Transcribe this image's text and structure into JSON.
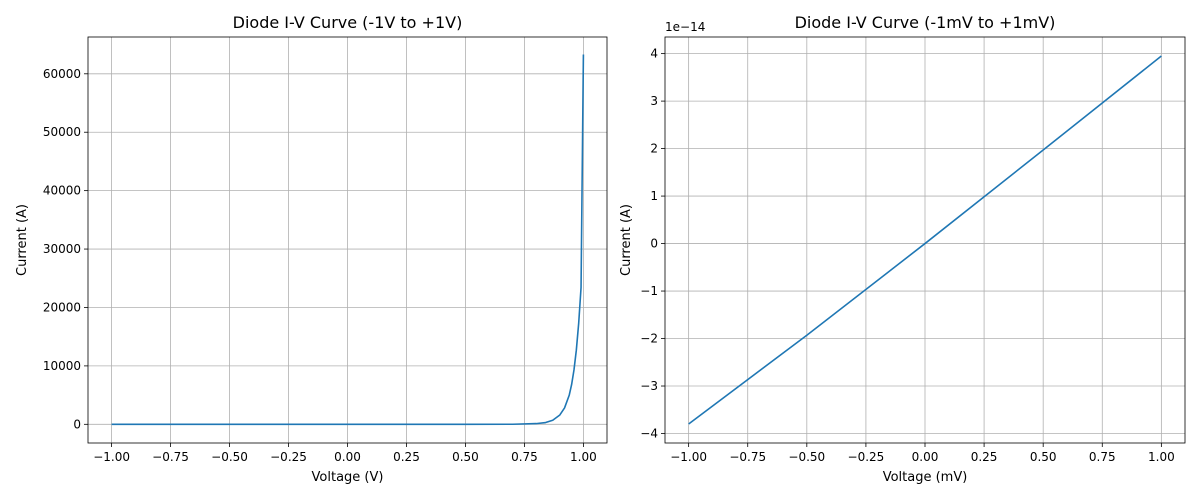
{
  "chart_data": [
    {
      "type": "line",
      "title": "Diode I-V Curve (-1V to +1V)",
      "xlabel": "Voltage (V)",
      "ylabel": "Current (A)",
      "xlim": [
        -1.1,
        1.1
      ],
      "ylim": [
        -3200,
        66300
      ],
      "grid": true,
      "x_ticks": [
        -1.0,
        -0.75,
        -0.5,
        -0.25,
        0.0,
        0.25,
        0.5,
        0.75,
        1.0
      ],
      "x_tick_labels": [
        "−1.00",
        "−0.75",
        "−0.50",
        "−0.25",
        "0.00",
        "0.25",
        "0.50",
        "0.75",
        "1.00"
      ],
      "y_ticks": [
        0,
        10000,
        20000,
        30000,
        40000,
        50000,
        60000
      ],
      "y_tick_labels": [
        "0",
        "10000",
        "20000",
        "30000",
        "40000",
        "50000",
        "60000"
      ],
      "offset_label": "",
      "color": "#1f77b4",
      "series": [
        {
          "x": [
            -1.0,
            -0.75,
            -0.5,
            -0.25,
            0.0,
            0.25,
            0.5,
            0.7,
            0.8,
            0.84,
            0.87,
            0.9,
            0.92,
            0.94,
            0.95,
            0.96,
            0.97,
            0.98,
            0.99,
            1.0
          ],
          "y": [
            0,
            0,
            0,
            0,
            0,
            0,
            0,
            10,
            120,
            300,
            700,
            1600,
            2800,
            5000,
            6800,
            9300,
            12700,
            17300,
            23400,
            63300
          ]
        }
      ]
    },
    {
      "type": "line",
      "title": "Diode I-V Curve (-1mV to +1mV)",
      "xlabel": "Voltage (mV)",
      "ylabel": "Current (A)",
      "xlim": [
        -1.1,
        1.1
      ],
      "ylim": [
        -4.2,
        4.35
      ],
      "grid": true,
      "x_ticks": [
        -1.0,
        -0.75,
        -0.5,
        -0.25,
        0.0,
        0.25,
        0.5,
        0.75,
        1.0
      ],
      "x_tick_labels": [
        "−1.00",
        "−0.75",
        "−0.50",
        "−0.25",
        "0.00",
        "0.25",
        "0.50",
        "0.75",
        "1.00"
      ],
      "y_ticks": [
        -4,
        -3,
        -2,
        -1,
        0,
        1,
        2,
        3,
        4
      ],
      "y_tick_labels": [
        "−4",
        "−3",
        "−2",
        "−1",
        "0",
        "1",
        "2",
        "3",
        "4"
      ],
      "offset_label": "1e−14",
      "color": "#1f77b4",
      "series": [
        {
          "x": [
            -1.0,
            -0.5,
            0.0,
            0.5,
            1.0
          ],
          "y": [
            -3.8,
            -1.93,
            0.0,
            1.97,
            3.95
          ]
        }
      ]
    }
  ]
}
